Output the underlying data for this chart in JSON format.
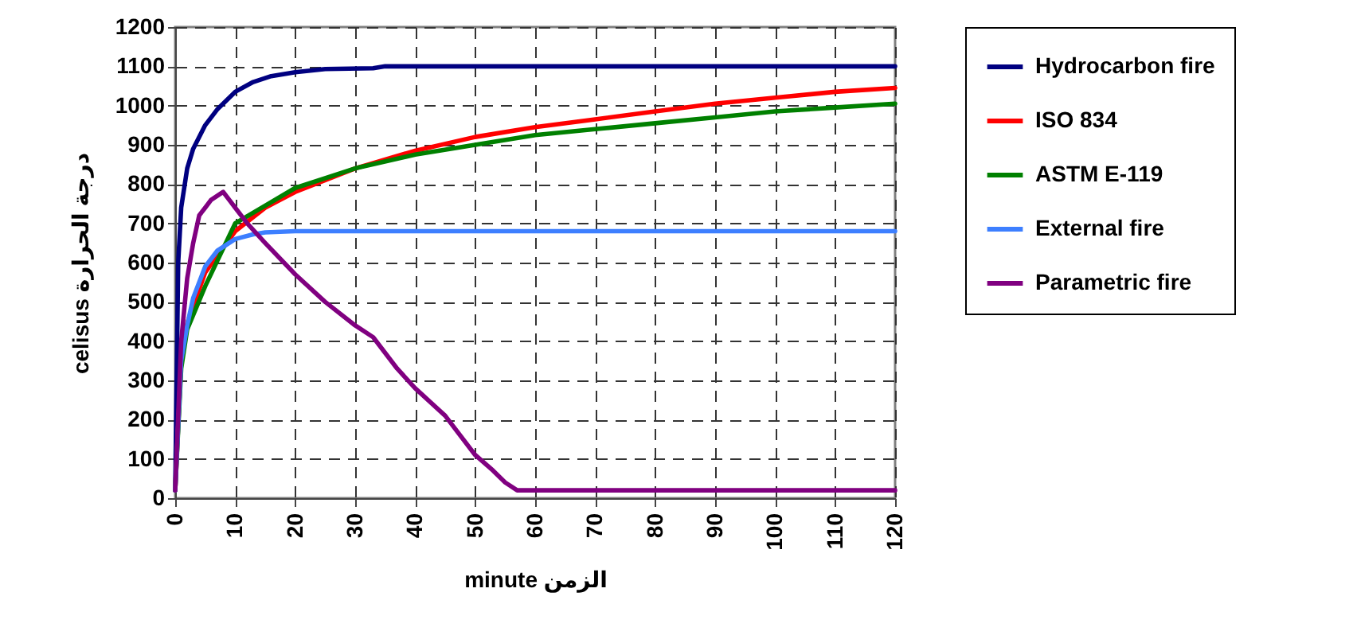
{
  "chart_data": {
    "type": "line",
    "xlabel": "minute  الزمن",
    "ylabel": "celisus   درجة الحرارة",
    "xlim": [
      0,
      120
    ],
    "ylim": [
      0,
      1200
    ],
    "xticks": [
      0,
      10,
      20,
      30,
      40,
      50,
      60,
      70,
      80,
      90,
      100,
      110,
      120
    ],
    "yticks": [
      0,
      100,
      200,
      300,
      400,
      500,
      600,
      700,
      800,
      900,
      1000,
      1100,
      1200
    ],
    "grid": true,
    "legend": "right",
    "series": [
      {
        "name": "Hydrocarbon fire",
        "color": "#000080",
        "x": [
          0,
          0.5,
          1,
          2,
          3,
          5,
          7,
          10,
          13,
          16,
          20,
          25,
          33,
          35,
          120
        ],
        "values": [
          20,
          600,
          740,
          840,
          890,
          950,
          990,
          1035,
          1060,
          1075,
          1085,
          1093,
          1095,
          1100,
          1100
        ]
      },
      {
        "name": "ISO 834",
        "color": "#ff0000",
        "x": [
          0,
          1,
          2,
          5,
          10,
          15,
          20,
          30,
          40,
          50,
          60,
          70,
          80,
          90,
          100,
          110,
          120
        ],
        "values": [
          20,
          350,
          445,
          575,
          680,
          740,
          780,
          840,
          885,
          920,
          945,
          965,
          985,
          1005,
          1020,
          1035,
          1045
        ]
      },
      {
        "name": "ASTM E-119",
        "color": "#008000",
        "x": [
          0,
          1,
          2,
          5,
          10,
          20,
          30,
          40,
          50,
          60,
          70,
          80,
          90,
          100,
          110,
          120
        ],
        "values": [
          20,
          330,
          430,
          540,
          700,
          790,
          840,
          875,
          900,
          925,
          940,
          955,
          970,
          985,
          995,
          1005
        ]
      },
      {
        "name": "External fire",
        "color": "#3d7fff",
        "x": [
          0,
          1,
          2,
          3,
          5,
          7,
          10,
          13,
          15,
          20,
          120
        ],
        "values": [
          20,
          350,
          440,
          510,
          590,
          630,
          660,
          672,
          677,
          680,
          680
        ]
      },
      {
        "name": "Parametric fire",
        "color": "#800080",
        "x": [
          0,
          1,
          2,
          3,
          4,
          5,
          6,
          8,
          10,
          12,
          15,
          20,
          25,
          30,
          33,
          37,
          40,
          45,
          50,
          53,
          55,
          57,
          120
        ],
        "values": [
          20,
          400,
          560,
          650,
          720,
          740,
          760,
          780,
          740,
          700,
          650,
          570,
          500,
          440,
          410,
          330,
          280,
          210,
          110,
          70,
          40,
          20,
          20
        ]
      }
    ]
  }
}
